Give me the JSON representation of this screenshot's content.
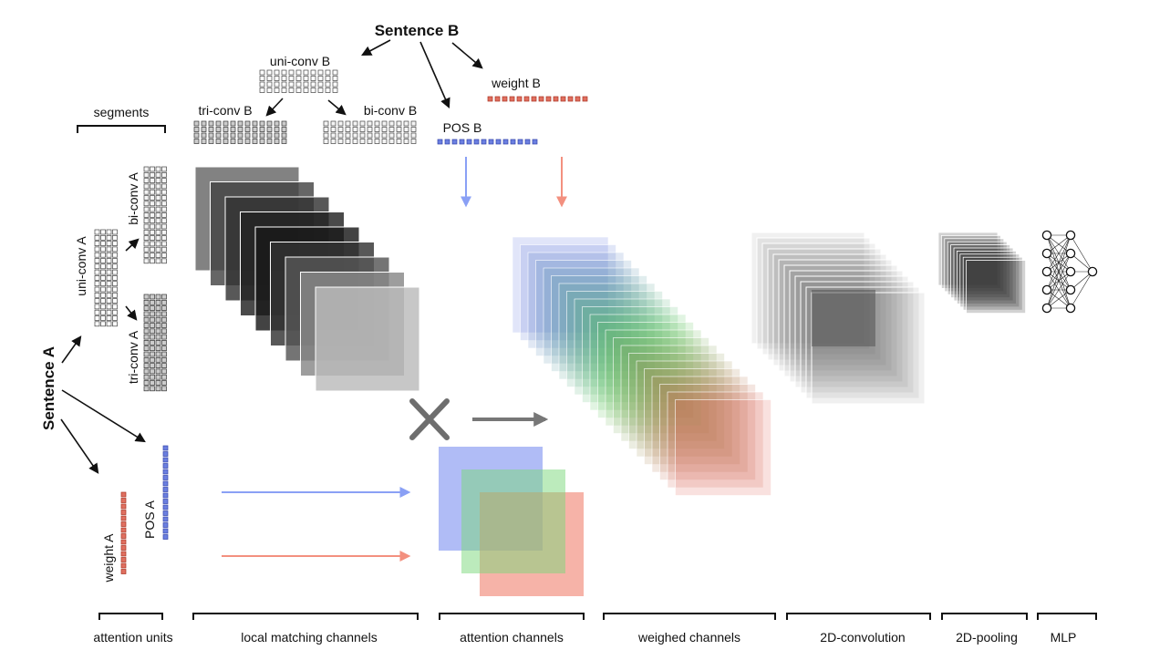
{
  "labels": {
    "sentence_b": "Sentence B",
    "sentence_a": "Sentence A",
    "uni_conv_b": "uni-conv B",
    "tri_conv_b": "tri-conv B",
    "bi_conv_b": "bi-conv B",
    "weight_b": "weight B",
    "pos_b": "POS B",
    "segments": "segments",
    "uni_conv_a": "uni-conv A",
    "bi_conv_a": "bi-conv A",
    "tri_conv_a": "tri-conv A",
    "pos_a": "POS A",
    "weight_a": "weight A"
  },
  "sections": [
    {
      "id": "attention-units",
      "label": "attention units"
    },
    {
      "id": "local-matching-channels",
      "label": "local matching channels"
    },
    {
      "id": "attention-channels",
      "label": "attention channels"
    },
    {
      "id": "weighed-channels",
      "label": "weighed channels"
    },
    {
      "id": "2d-convolution",
      "label": "2D-convolution"
    },
    {
      "id": "2d-pooling",
      "label": "2D-pooling"
    },
    {
      "id": "mlp",
      "label": "MLP"
    }
  ],
  "colors": {
    "blue": "#7b8ff0",
    "red": "#f0806e",
    "green": "#7ad87a",
    "pos_square": "#6b7fe0",
    "weight_square": "#e07060"
  }
}
